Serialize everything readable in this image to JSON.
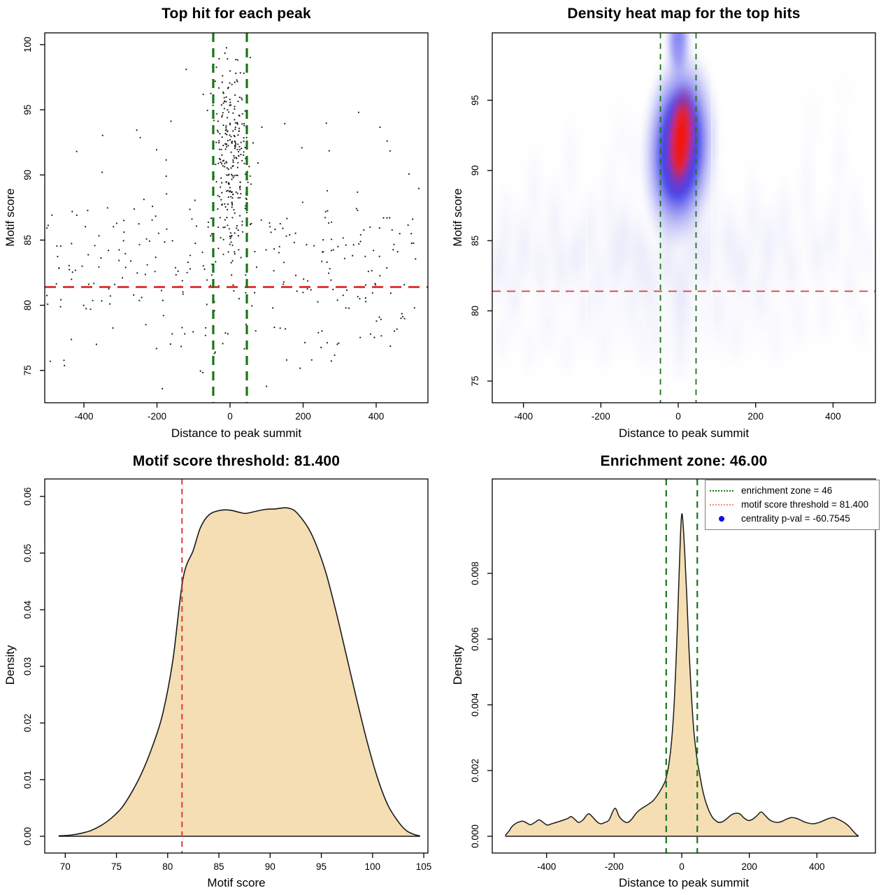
{
  "colors": {
    "background": "#ffffff",
    "red_dash": "#e03a3a",
    "green_dash": "#167716",
    "wheat_fill": "#f5deb3",
    "curve_stroke": "#1a1a1a",
    "point_color": "#1c1c1c",
    "legend_green": "#167716",
    "legend_salmon": "#ef8585",
    "legend_blue": "#1010e8",
    "heat_blue_core": "#1d1df0",
    "heat_red_core": "#fb1000",
    "heat_faint_blob": "#7d7de0"
  },
  "values": {
    "motif_score_threshold": 81.4,
    "enrichment_zone": 46,
    "centrality_p_val": -60.7545
  },
  "chart_data": [
    {
      "id": "top-hit-scatter",
      "type": "scatter",
      "title": "Top hit for each peak",
      "xlabel": "Distance to peak summit",
      "ylabel": "Motif score",
      "xticks": [
        -400,
        -200,
        0,
        200,
        400
      ],
      "yticks": [
        75,
        80,
        85,
        90,
        95,
        100
      ],
      "xlim": [
        -515,
        540
      ],
      "ylim": [
        72.6,
        100.9
      ],
      "threshold_y": 81.4,
      "zone_x": [
        -46,
        46
      ],
      "grid": false,
      "generator": {
        "seed": 20,
        "clusters": [
          {
            "kind": "normal",
            "n": 265,
            "xm": 3,
            "xs": 24,
            "ym": 91.8,
            "ys": 3.4,
            "xclip": [
              -78,
              88
            ],
            "yclip": [
              78.5,
              100.3
            ]
          },
          {
            "kind": "uniformx",
            "n": 120,
            "xmin": -505,
            "xmax": 525,
            "ym": 84.3,
            "ys": 2.1,
            "yclip": [
              79.0,
              92.3
            ]
          },
          {
            "kind": "uniformx",
            "n": 160,
            "xmin": -512,
            "xmax": 528,
            "ym": 82.3,
            "ys": 3.1,
            "yclip": [
              73.4,
              93.5
            ]
          },
          {
            "kind": "uniformx",
            "n": 25,
            "xmin": -460,
            "xmax": 480,
            "ym": 77.6,
            "ys": 1.4,
            "yclip": [
              74.5,
              80.0
            ]
          },
          {
            "kind": "uniformx",
            "n": 12,
            "xmin": -455,
            "xmax": 470,
            "ym": 92.3,
            "ys": 1.6,
            "yclip": [
              90.0,
              95.2
            ]
          }
        ],
        "outliers": [
          [
            -120,
            98.1
          ],
          [
            -185,
            73.6
          ],
          [
            352,
            94.8
          ],
          [
            430,
            92.6
          ],
          [
            -420,
            91.8
          ],
          [
            468,
            79.0
          ],
          [
            155,
            75.8
          ],
          [
            242,
            77.9
          ],
          [
            -350,
            90.2
          ],
          [
            496,
            85.5
          ]
        ]
      }
    },
    {
      "id": "density-heatmap",
      "type": "heatmap",
      "title": "Density heat map for the top hits",
      "xlabel": "Distance to peak summit",
      "ylabel": "Motif score",
      "xticks": [
        -400,
        -200,
        0,
        200,
        400
      ],
      "yticks": [
        75,
        80,
        85,
        90,
        95
      ],
      "xlim": [
        -480,
        510
      ],
      "ylim": [
        73.4,
        99.8
      ],
      "threshold_y": 81.4,
      "zone_x": [
        -46,
        46
      ],
      "center_hotspot": {
        "top_streak": [
          0,
          99.3,
          36,
          3.5,
          0.55
        ],
        "blue_blob": [
          4,
          91.6,
          105,
          7.6,
          0.97
        ],
        "red_core": [
          7,
          92.2,
          40,
          4.2,
          1.0
        ],
        "tilt_deg": 3
      },
      "washes": [
        [
          0,
          83.5,
          500,
          6,
          0.07
        ],
        [
          0,
          79,
          500,
          4,
          0.05
        ]
      ],
      "blobs": [
        [
          -465,
          83,
          26,
          3.5,
          0.25
        ],
        [
          -445,
          86,
          22,
          4,
          0.2
        ],
        [
          -455,
          78,
          22,
          2.5,
          0.15
        ],
        [
          -425,
          81,
          24,
          3.5,
          0.22
        ],
        [
          -400,
          84.5,
          26,
          4,
          0.25
        ],
        [
          -385,
          77,
          22,
          2.5,
          0.12
        ],
        [
          -372,
          88.5,
          20,
          4.5,
          0.18
        ],
        [
          -355,
          83,
          24,
          3.5,
          0.22
        ],
        [
          -338,
          79,
          22,
          3,
          0.16
        ],
        [
          -320,
          86.5,
          24,
          4,
          0.22
        ],
        [
          -302,
          83,
          24,
          3.5,
          0.22
        ],
        [
          -288,
          77,
          22,
          2.5,
          0.12
        ],
        [
          -278,
          90.5,
          18,
          5,
          0.15
        ],
        [
          -262,
          84,
          24,
          3.5,
          0.25
        ],
        [
          -242,
          80,
          22,
          3,
          0.17
        ],
        [
          -228,
          86,
          22,
          4,
          0.2
        ],
        [
          -207,
          82,
          22,
          3.5,
          0.18
        ],
        [
          -192,
          77.5,
          20,
          2.5,
          0.13
        ],
        [
          -178,
          88,
          20,
          5,
          0.17
        ],
        [
          -162,
          83.5,
          24,
          3.5,
          0.22
        ],
        [
          -150,
          92.5,
          16,
          4,
          0.12
        ],
        [
          -140,
          85.5,
          24,
          4,
          0.25
        ],
        [
          -122,
          80.5,
          20,
          3,
          0.15
        ],
        [
          -116,
          91,
          15,
          4.5,
          0.13
        ],
        [
          -100,
          84,
          22,
          4,
          0.27
        ],
        [
          -90,
          77.5,
          18,
          2.5,
          0.12
        ],
        [
          -72,
          82,
          18,
          4,
          0.25
        ],
        [
          -52,
          78,
          16,
          3,
          0.15
        ],
        [
          72,
          84,
          22,
          4,
          0.25
        ],
        [
          88,
          88,
          18,
          4.5,
          0.2
        ],
        [
          104,
          80,
          20,
          3,
          0.15
        ],
        [
          132,
          85,
          24,
          4,
          0.22
        ],
        [
          148,
          78,
          18,
          2.5,
          0.12
        ],
        [
          164,
          83,
          24,
          3.5,
          0.22
        ],
        [
          193,
          87,
          22,
          4.5,
          0.18
        ],
        [
          213,
          81,
          22,
          3,
          0.18
        ],
        [
          233,
          84.5,
          24,
          4,
          0.23
        ],
        [
          253,
          78,
          20,
          2.5,
          0.12
        ],
        [
          273,
          86.5,
          24,
          4,
          0.18
        ],
        [
          293,
          83,
          22,
          3,
          0.2
        ],
        [
          313,
          79.5,
          20,
          2.8,
          0.13
        ],
        [
          333,
          88.5,
          20,
          5,
          0.17
        ],
        [
          345,
          93.5,
          15,
          3.5,
          0.11
        ],
        [
          358,
          84,
          22,
          3.2,
          0.21
        ],
        [
          378,
          80,
          20,
          2.8,
          0.14
        ],
        [
          398,
          85.5,
          24,
          4,
          0.19
        ],
        [
          418,
          90.5,
          16,
          4.5,
          0.14
        ],
        [
          428,
          95.5,
          13,
          2.8,
          0.09
        ],
        [
          443,
          82,
          22,
          3,
          0.18
        ],
        [
          458,
          86.5,
          22,
          4,
          0.17
        ],
        [
          473,
          78.8,
          18,
          2.8,
          0.12
        ],
        [
          490,
          84,
          18,
          3,
          0.15
        ],
        [
          8,
          81,
          26,
          4.5,
          0.3
        ],
        [
          5,
          76.8,
          22,
          2.5,
          0.18
        ],
        [
          -30,
          84,
          20,
          4,
          0.3
        ],
        [
          40,
          85,
          20,
          4,
          0.3
        ]
      ],
      "artifact_lines_x": [
        -237,
        87
      ]
    },
    {
      "id": "motif-score-density",
      "type": "area",
      "title": "Motif score threshold: 81.400",
      "xlabel": "Motif score",
      "ylabel": "Density",
      "xticks": [
        70,
        75,
        80,
        85,
        90,
        95,
        100,
        105
      ],
      "yticks": [
        0,
        0.01,
        0.02,
        0.03,
        0.04,
        0.05,
        0.06
      ],
      "ytick_labels": [
        "0.00",
        "0.01",
        "0.02",
        "0.03",
        "0.04",
        "0.05",
        "0.06"
      ],
      "xlim": [
        68,
        105.5
      ],
      "ylim": [
        0,
        0.063
      ],
      "threshold_x": 81.4,
      "points": [
        [
          69.4,
          8e-05
        ],
        [
          70.5,
          0.0002
        ],
        [
          71.5,
          0.0005
        ],
        [
          72.5,
          0.001
        ],
        [
          73.5,
          0.0019
        ],
        [
          74.5,
          0.0032
        ],
        [
          75.5,
          0.005
        ],
        [
          76.5,
          0.0078
        ],
        [
          77.5,
          0.0113
        ],
        [
          78.5,
          0.0158
        ],
        [
          79.5,
          0.0215
        ],
        [
          80.5,
          0.031
        ],
        [
          81.5,
          0.0455
        ],
        [
          82.5,
          0.0505
        ],
        [
          83.2,
          0.0545
        ],
        [
          84,
          0.0567
        ],
        [
          85,
          0.0575
        ],
        [
          86,
          0.0576
        ],
        [
          87,
          0.0572
        ],
        [
          87.6,
          0.057
        ],
        [
          88.4,
          0.0573
        ],
        [
          89.5,
          0.0577
        ],
        [
          90.5,
          0.0578
        ],
        [
          91.5,
          0.058
        ],
        [
          92.3,
          0.0576
        ],
        [
          93,
          0.0563
        ],
        [
          93.8,
          0.0542
        ],
        [
          94.6,
          0.051
        ],
        [
          95.5,
          0.0462
        ],
        [
          96.5,
          0.0392
        ],
        [
          97.5,
          0.0315
        ],
        [
          98.5,
          0.0238
        ],
        [
          99.5,
          0.0165
        ],
        [
          100.5,
          0.0102
        ],
        [
          101.5,
          0.0055
        ],
        [
          102.5,
          0.0026
        ],
        [
          103.3,
          0.001
        ],
        [
          104.1,
          0.0003
        ],
        [
          104.6,
          8e-05
        ]
      ]
    },
    {
      "id": "distance-density",
      "type": "area",
      "title": "Enrichment zone: 46.00",
      "xlabel": "Distance to peak summit",
      "ylabel": "Density",
      "xticks": [
        -400,
        -200,
        0,
        200,
        400
      ],
      "yticks": [
        0,
        0.002,
        0.004,
        0.006,
        0.008
      ],
      "ytick_labels": [
        "0.000",
        "0.002",
        "0.004",
        "0.006",
        "0.008"
      ],
      "xlim": [
        -560,
        570
      ],
      "ylim": [
        0,
        0.0102
      ],
      "zone_x": [
        -46,
        46
      ],
      "legend": {
        "items": [
          {
            "swatch": "dotted-green-line",
            "label": "enrichment zone = 46"
          },
          {
            "swatch": "dotted-red-line",
            "label": "motif score threshold = 81.400"
          },
          {
            "swatch": "blue-dot",
            "label": "centrality p-val = -60.7545"
          }
        ]
      },
      "points": [
        [
          -521,
          4e-05
        ],
        [
          -512,
          0.00015
        ],
        [
          -502,
          0.0003
        ],
        [
          -490,
          0.0004
        ],
        [
          -480,
          0.00044
        ],
        [
          -470,
          0.00046
        ],
        [
          -458,
          0.0004
        ],
        [
          -448,
          0.00035
        ],
        [
          -435,
          0.00042
        ],
        [
          -422,
          0.0005
        ],
        [
          -410,
          0.00042
        ],
        [
          -398,
          0.00034
        ],
        [
          -385,
          0.00038
        ],
        [
          -372,
          0.00042
        ],
        [
          -360,
          0.00046
        ],
        [
          -348,
          0.0005
        ],
        [
          -336,
          0.00055
        ],
        [
          -327,
          0.0006
        ],
        [
          -315,
          0.0005
        ],
        [
          -305,
          0.00042
        ],
        [
          -292,
          0.0005
        ],
        [
          -277,
          0.00068
        ],
        [
          -265,
          0.0006
        ],
        [
          -252,
          0.00045
        ],
        [
          -240,
          0.00038
        ],
        [
          -228,
          0.00042
        ],
        [
          -215,
          0.0005
        ],
        [
          -198,
          0.00085
        ],
        [
          -185,
          0.0006
        ],
        [
          -172,
          0.00046
        ],
        [
          -160,
          0.00042
        ],
        [
          -148,
          0.00052
        ],
        [
          -135,
          0.0007
        ],
        [
          -122,
          0.00082
        ],
        [
          -110,
          0.0009
        ],
        [
          -98,
          0.00098
        ],
        [
          -85,
          0.00108
        ],
        [
          -72,
          0.00125
        ],
        [
          -60,
          0.00145
        ],
        [
          -50,
          0.00165
        ],
        [
          -46,
          0.00178
        ],
        [
          -38,
          0.0022
        ],
        [
          -30,
          0.0029
        ],
        [
          -22,
          0.0041
        ],
        [
          -15,
          0.0058
        ],
        [
          -9,
          0.0076
        ],
        [
          -4,
          0.0091
        ],
        [
          0,
          0.0098
        ],
        [
          4,
          0.0095
        ],
        [
          9,
          0.0086
        ],
        [
          15,
          0.0073
        ],
        [
          21,
          0.0058
        ],
        [
          28,
          0.0044
        ],
        [
          35,
          0.0033
        ],
        [
          41,
          0.0027
        ],
        [
          46,
          0.0023
        ],
        [
          53,
          0.0019
        ],
        [
          60,
          0.0015
        ],
        [
          68,
          0.00115
        ],
        [
          76,
          0.0009
        ],
        [
          84,
          0.0007
        ],
        [
          92,
          0.00056
        ],
        [
          100,
          0.00048
        ],
        [
          110,
          0.00042
        ],
        [
          122,
          0.00045
        ],
        [
          135,
          0.00055
        ],
        [
          148,
          0.00066
        ],
        [
          160,
          0.0007
        ],
        [
          172,
          0.00068
        ],
        [
          185,
          0.00055
        ],
        [
          198,
          0.00048
        ],
        [
          210,
          0.00052
        ],
        [
          222,
          0.00062
        ],
        [
          235,
          0.00074
        ],
        [
          248,
          0.00062
        ],
        [
          260,
          0.0005
        ],
        [
          272,
          0.00044
        ],
        [
          285,
          0.00042
        ],
        [
          298,
          0.00046
        ],
        [
          312,
          0.00053
        ],
        [
          325,
          0.00057
        ],
        [
          338,
          0.00055
        ],
        [
          350,
          0.0005
        ],
        [
          362,
          0.00044
        ],
        [
          375,
          0.0004
        ],
        [
          388,
          0.00038
        ],
        [
          400,
          0.0004
        ],
        [
          412,
          0.00044
        ],
        [
          425,
          0.0005
        ],
        [
          438,
          0.00055
        ],
        [
          450,
          0.00057
        ],
        [
          462,
          0.00052
        ],
        [
          474,
          0.00046
        ],
        [
          486,
          0.00038
        ],
        [
          497,
          0.00028
        ],
        [
          507,
          0.00016
        ],
        [
          516,
          6e-05
        ],
        [
          522,
          2e-05
        ]
      ]
    }
  ]
}
